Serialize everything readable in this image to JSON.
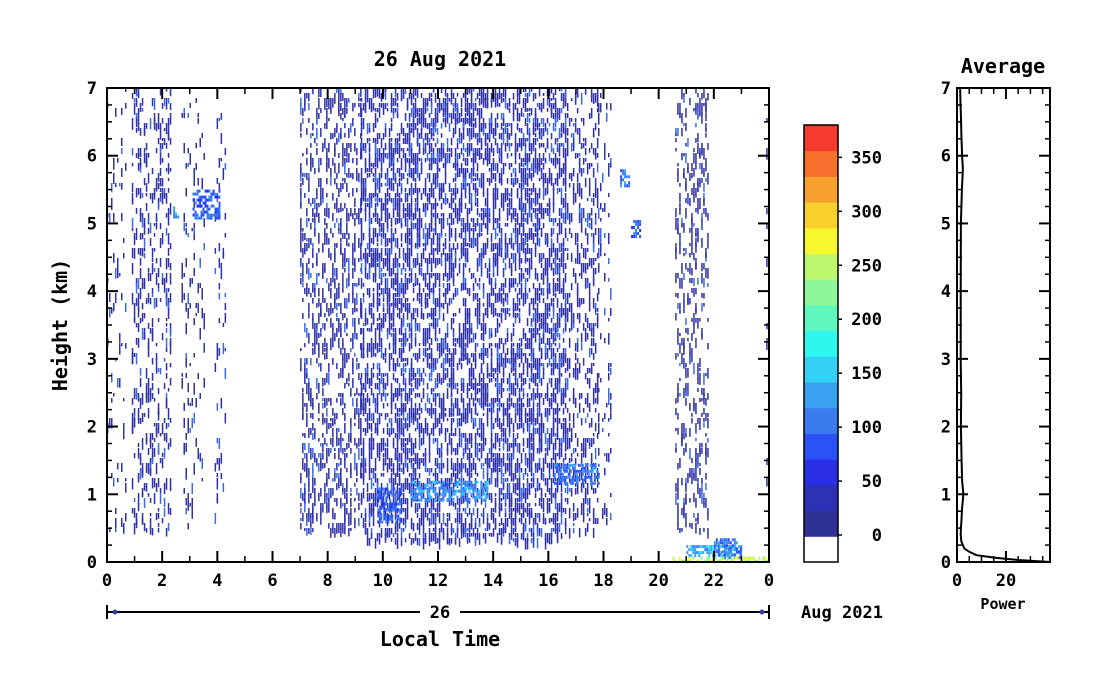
{
  "chart_data": [
    {
      "type": "heatmap",
      "title": "26 Aug 2021",
      "xlabel": "Local Time",
      "ylabel": "Height (km)",
      "xlim": [
        0,
        24
      ],
      "ylim": [
        0,
        7
      ],
      "x_ticks": [
        "0",
        "2",
        "4",
        "6",
        "8",
        "10",
        "12",
        "14",
        "16",
        "18",
        "20",
        "22",
        "0"
      ],
      "y_ticks": [
        "0",
        "1",
        "2",
        "3",
        "4",
        "5",
        "6",
        "7"
      ],
      "day_label": "26",
      "month_label": "Aug 2021",
      "colorbar": {
        "ticks": [
          "0",
          "50",
          "100",
          "150",
          "200",
          "250",
          "300",
          "350"
        ],
        "tick_values": [
          0,
          50,
          100,
          150,
          200,
          250,
          300,
          350
        ],
        "range": [
          -25,
          380
        ],
        "colors": [
          "#ffffff",
          "#2e3196",
          "#2e31b4",
          "#2a2ee6",
          "#2b52f7",
          "#3a7bf0",
          "#3aa0f0",
          "#33d0f7",
          "#2ef7f0",
          "#5ef7c0",
          "#8ef79a",
          "#bdf770",
          "#f7f72e",
          "#f7d02e",
          "#f7a02e",
          "#f7702e",
          "#f73a2e"
        ]
      },
      "echo_regions": [
        {
          "t": [
            0.0,
            0.7
          ],
          "h": [
            0.5,
            7.0
          ],
          "density": 0.09
        },
        {
          "t": [
            0.9,
            2.3
          ],
          "h": [
            0.5,
            7.0
          ],
          "density": 0.22
        },
        {
          "t": [
            2.7,
            3.5
          ],
          "h": [
            0.5,
            7.0
          ],
          "density": 0.12
        },
        {
          "t": [
            3.9,
            4.3
          ],
          "h": [
            0.5,
            7.0
          ],
          "density": 0.1
        },
        {
          "t": [
            7.0,
            9.2
          ],
          "h": [
            0.5,
            7.0
          ],
          "density": 0.28
        },
        {
          "t": [
            9.2,
            16.6
          ],
          "h": [
            0.35,
            7.0
          ],
          "density": 0.42
        },
        {
          "t": [
            16.6,
            17.8
          ],
          "h": [
            0.5,
            7.0
          ],
          "density": 0.25
        },
        {
          "t": [
            17.8,
            18.3
          ],
          "h": [
            0.6,
            7.0
          ],
          "density": 0.12
        },
        {
          "t": [
            20.6,
            21.8
          ],
          "h": [
            0.5,
            7.0
          ],
          "density": 0.24
        },
        {
          "t": [
            23.9,
            24.0
          ],
          "h": [
            1.0,
            7.0
          ],
          "density": 0.15
        }
      ],
      "enhanced_patches": [
        {
          "t": [
            3.1,
            4.1
          ],
          "h": [
            5.1,
            5.5
          ],
          "value": 90
        },
        {
          "t": [
            2.4,
            2.6
          ],
          "h": [
            5.1,
            5.25
          ],
          "value": 130
        },
        {
          "t": [
            18.6,
            18.9
          ],
          "h": [
            5.55,
            5.8
          ],
          "value": 100
        },
        {
          "t": [
            19.0,
            19.3
          ],
          "h": [
            4.8,
            5.05
          ],
          "value": 90
        },
        {
          "t": [
            9.8,
            10.6
          ],
          "h": [
            0.6,
            1.1
          ],
          "value": 90
        },
        {
          "t": [
            11.0,
            13.8
          ],
          "h": [
            0.9,
            1.2
          ],
          "value": 120
        },
        {
          "t": [
            16.2,
            17.8
          ],
          "h": [
            1.15,
            1.45
          ],
          "value": 100
        },
        {
          "t": [
            21.0,
            23.0
          ],
          "h": [
            0.08,
            0.25
          ],
          "value": 140
        },
        {
          "t": [
            22.0,
            23.0
          ],
          "h": [
            0.05,
            0.35
          ],
          "value": 100
        },
        {
          "t": [
            20.5,
            24.0
          ],
          "h": [
            0.0,
            0.08
          ],
          "value": 250
        }
      ]
    },
    {
      "type": "line",
      "title": "Average",
      "xlabel": "Power",
      "ylabel": "",
      "xlim": [
        0,
        38
      ],
      "ylim": [
        0,
        7
      ],
      "x_ticks": [
        "0",
        "20"
      ],
      "y_ticks": [
        "0",
        "1",
        "2",
        "3",
        "4",
        "5",
        "6",
        "7"
      ],
      "profile": {
        "height": [
          0.0,
          0.03,
          0.06,
          0.1,
          0.15,
          0.2,
          0.25,
          0.3,
          0.4,
          0.5,
          0.6,
          0.8,
          1.0,
          1.2,
          1.5,
          2.0,
          2.5,
          3.0,
          4.0,
          5.0,
          5.5,
          5.8,
          6.0,
          6.3,
          6.6,
          6.8,
          7.0
        ],
        "power": [
          38,
          25,
          16,
          8,
          5,
          3,
          2.4,
          1.8,
          1.5,
          1.6,
          1.8,
          2.1,
          2.6,
          2.1,
          1.9,
          1.6,
          1.7,
          1.5,
          1.5,
          1.6,
          2.0,
          2.4,
          2.1,
          1.8,
          1.6,
          1.4,
          1.3
        ]
      }
    }
  ]
}
